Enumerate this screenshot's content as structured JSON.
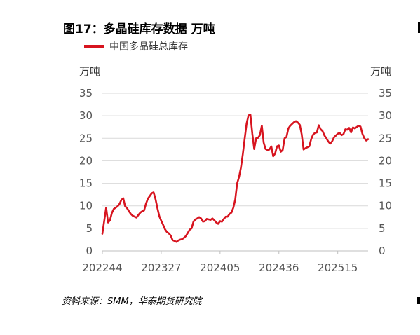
{
  "title": "图17：多晶硅库存数据 万吨",
  "source": "资料来源：SMM，华泰期货研究院",
  "chart_data": {
    "type": "line",
    "left_unit": "万吨",
    "right_unit": "万吨",
    "ylim": [
      0,
      35
    ],
    "yticks": [
      "0",
      "5",
      "10",
      "15",
      "20",
      "25",
      "30",
      "35"
    ],
    "x_tick_labels": [
      "202244",
      "202327",
      "202405",
      "202436",
      "202515"
    ],
    "x_tick_positions": [
      0,
      31,
      62,
      93,
      124
    ],
    "n_points": 141,
    "grid": true,
    "legend": "top-left",
    "series": [
      {
        "name": "中国多晶硅总库存",
        "color": "#d7141f",
        "values": [
          3.8,
          6.7,
          9.6,
          6.3,
          6.8,
          8.4,
          9.3,
          9.6,
          9.9,
          10.4,
          11.3,
          11.7,
          9.9,
          9.5,
          8.8,
          8.2,
          7.8,
          7.6,
          7.4,
          8.0,
          8.5,
          8.8,
          9.0,
          10.5,
          11.6,
          12.2,
          12.8,
          13.0,
          11.5,
          9.5,
          7.7,
          6.7,
          5.8,
          4.8,
          4.2,
          3.9,
          3.4,
          2.4,
          2.2,
          2.0,
          2.3,
          2.5,
          2.6,
          2.9,
          3.3,
          4.0,
          4.7,
          5.0,
          6.5,
          7.0,
          7.2,
          7.5,
          7.2,
          6.5,
          6.6,
          7.1,
          7.0,
          6.9,
          7.2,
          6.8,
          6.3,
          6.0,
          6.6,
          6.5,
          7.1,
          7.6,
          7.6,
          8.2,
          8.5,
          9.6,
          11.4,
          15.0,
          16.4,
          18.5,
          21.5,
          25.0,
          28.3,
          30.1,
          30.2,
          26.0,
          22.6,
          25.0,
          25.1,
          25.7,
          27.8,
          24.0,
          22.6,
          22.4,
          22.5,
          23.2,
          21.0,
          21.6,
          23.2,
          23.4,
          22.0,
          22.4,
          25.0,
          25.3,
          27.2,
          27.8,
          28.2,
          28.6,
          28.8,
          28.5,
          28.0,
          25.9,
          22.5,
          22.8,
          23.0,
          23.2,
          24.8,
          25.8,
          26.2,
          26.3,
          27.9,
          27.0,
          26.6,
          25.6,
          25.0,
          24.3,
          23.8,
          24.3,
          25.2,
          25.6,
          26.0,
          26.2,
          25.7,
          25.9,
          27.0,
          26.9,
          27.3,
          26.3,
          27.4,
          27.2,
          27.5,
          27.8,
          27.6,
          26.0,
          25.0,
          24.5,
          24.8
        ]
      }
    ]
  }
}
